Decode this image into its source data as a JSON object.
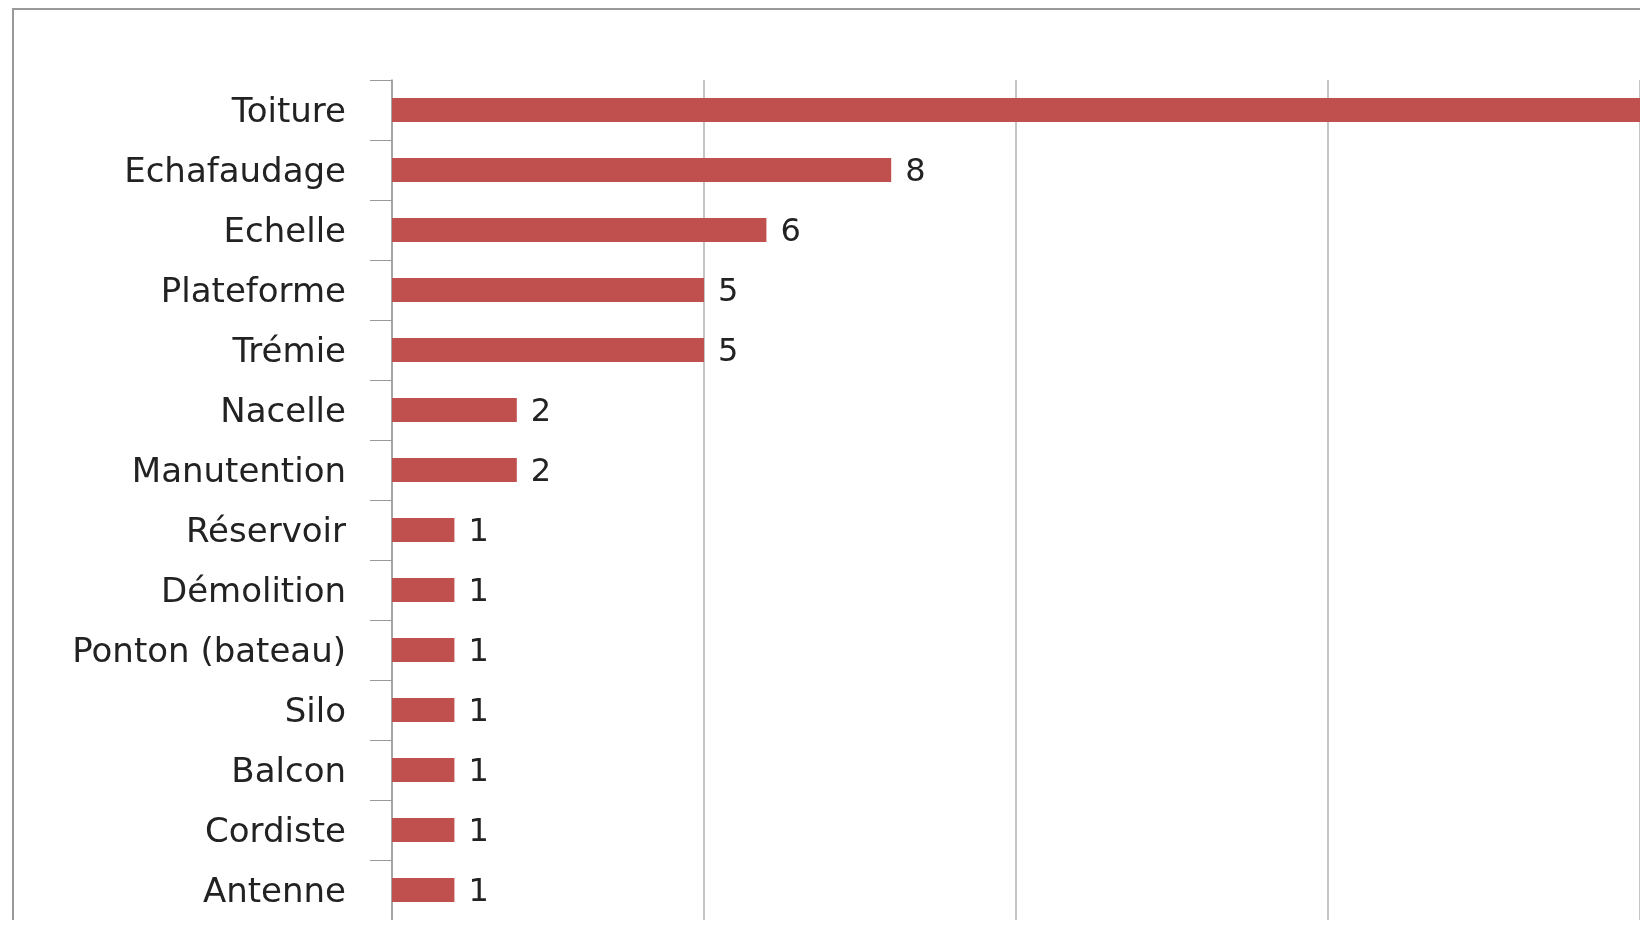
{
  "chart_data": {
    "type": "bar",
    "orientation": "horizontal",
    "categories": [
      "Toiture",
      "Echafaudage",
      "Echelle",
      "Plateforme",
      "Trémie",
      "Nacelle",
      "Manutention",
      "Réservoir",
      "Démolition",
      "Ponton (bateau)",
      "Silo",
      "Balcon",
      "Cordiste",
      "Antenne"
    ],
    "values": [
      20,
      8,
      6,
      5,
      5,
      2,
      2,
      1,
      1,
      1,
      1,
      1,
      1,
      1
    ],
    "value_labels": [
      null,
      "8",
      "6",
      "5",
      "5",
      "2",
      "2",
      "1",
      "1",
      "1",
      "1",
      "1",
      "1",
      "1"
    ],
    "color": "#c0504d",
    "xlim": [
      0,
      20
    ],
    "xticks": [
      {
        "value": 0,
        "label": null
      },
      {
        "value": 5,
        "label": null
      },
      {
        "value": 10,
        "label": null
      },
      {
        "value": 15,
        "label": null
      },
      {
        "value": 20,
        "label": null
      }
    ],
    "grid": "x",
    "tick_labels": "y"
  }
}
